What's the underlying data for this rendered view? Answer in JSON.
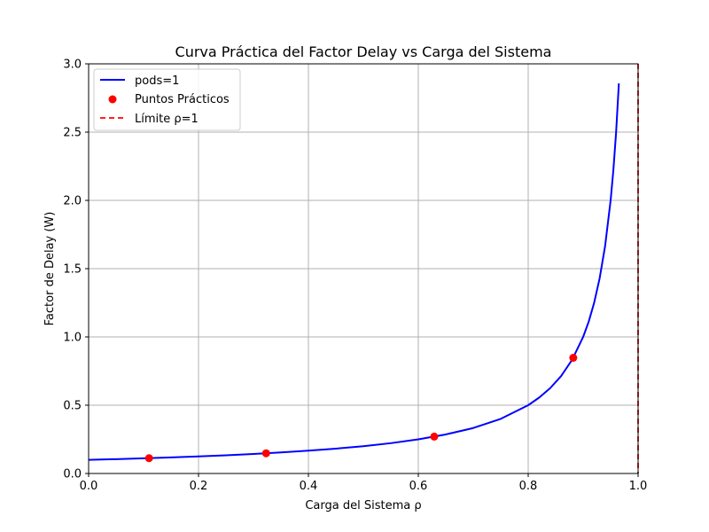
{
  "chart_data": {
    "type": "line",
    "title": "Curva Práctica del Factor Delay vs Carga del Sistema",
    "xlabel": "Carga del Sistema ρ",
    "ylabel": "Factor de Delay (W)",
    "xlim": [
      0.0,
      1.0
    ],
    "ylim": [
      0.0,
      3.0
    ],
    "grid": true,
    "legend_position": "top-left",
    "x_ticks": [
      "0.0",
      "0.2",
      "0.4",
      "0.6",
      "0.8",
      "1.0"
    ],
    "y_ticks": [
      "0.0",
      "0.5",
      "1.0",
      "1.5",
      "2.0",
      "2.5",
      "3.0"
    ],
    "series": [
      {
        "name": "pods=1",
        "kind": "line",
        "color": "#0000ff",
        "x": [
          0.0,
          0.05,
          0.1,
          0.15,
          0.2,
          0.25,
          0.3,
          0.35,
          0.4,
          0.45,
          0.5,
          0.55,
          0.6,
          0.65,
          0.7,
          0.75,
          0.8,
          0.82,
          0.84,
          0.86,
          0.88,
          0.9,
          0.91,
          0.92,
          0.93,
          0.94,
          0.95,
          0.955,
          0.96,
          0.965
        ],
        "y": [
          0.1,
          0.105,
          0.111,
          0.118,
          0.125,
          0.133,
          0.143,
          0.154,
          0.167,
          0.182,
          0.2,
          0.222,
          0.25,
          0.286,
          0.333,
          0.4,
          0.5,
          0.556,
          0.625,
          0.714,
          0.833,
          1.0,
          1.111,
          1.25,
          1.429,
          1.667,
          2.0,
          2.222,
          2.5,
          2.857
        ]
      },
      {
        "name": "Puntos Prácticos",
        "kind": "scatter",
        "color": "#ff0000",
        "x": [
          0.11,
          0.323,
          0.629,
          0.882
        ],
        "y": [
          0.112,
          0.148,
          0.27,
          0.847
        ]
      },
      {
        "name": "Límite ρ=1",
        "kind": "vline",
        "color": "#ff0000",
        "x": [
          1.0
        ]
      }
    ]
  }
}
